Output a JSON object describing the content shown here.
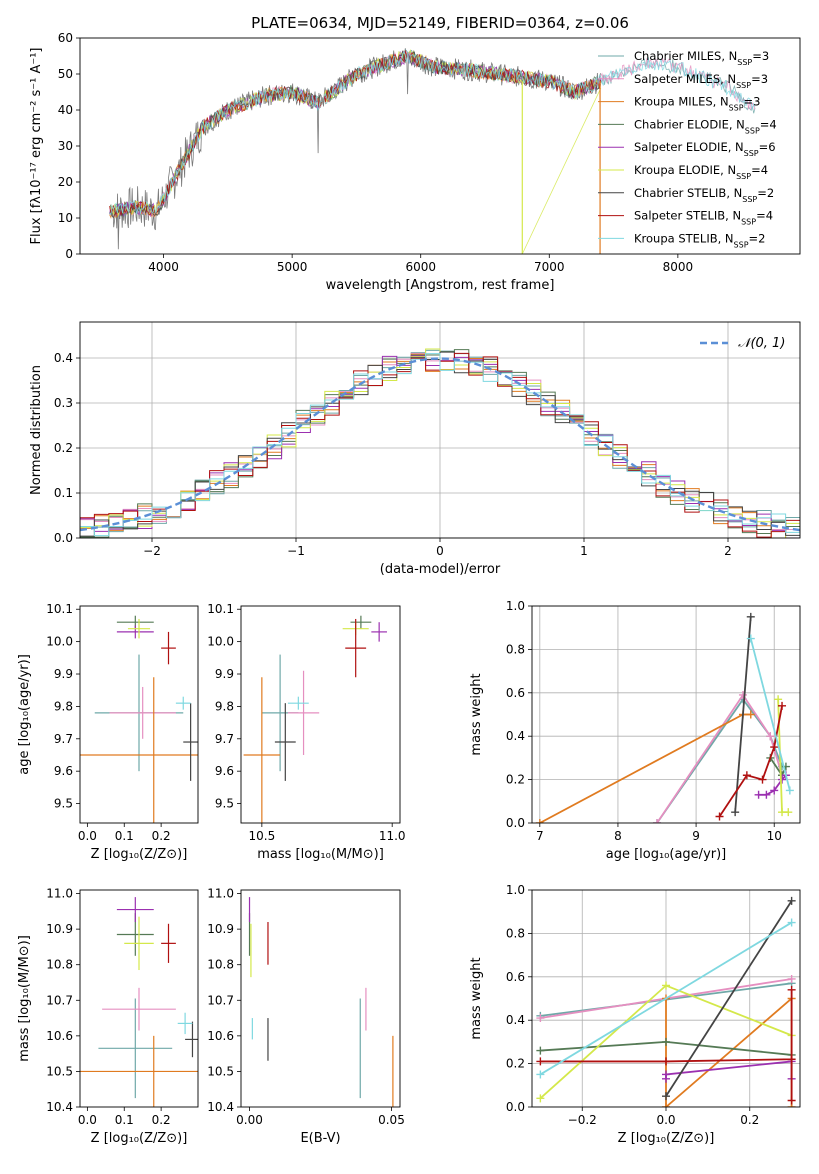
{
  "title": "PLATE=0634, MJD=52149, FIBERID=0364, z=0.06",
  "colors": {
    "grid": "#b0b0b0",
    "normal_curve": "#5b8fd6"
  },
  "chart_data": [
    {
      "id": "spectrum",
      "type": "line",
      "xlabel": "wavelength [Angstrom, rest frame]",
      "ylabel": "Flux [fλ10⁻¹⁷ erg cm⁻² s⁻¹ A⁻¹]",
      "xlim": [
        3350,
        8950
      ],
      "ylim": [
        0,
        60
      ],
      "xticks": [
        4000,
        5000,
        6000,
        7000,
        8000
      ],
      "yticks": [
        0,
        10,
        20,
        30,
        40,
        50,
        60
      ],
      "grid": false,
      "legend_position": "top-right",
      "anchor_points": {
        "x": [
          3600,
          3800,
          3950,
          4100,
          4300,
          4500,
          4800,
          5000,
          5200,
          5500,
          5800,
          5900,
          6100,
          6400,
          6600,
          6800,
          7000,
          7200,
          7400,
          7600,
          7800,
          8000,
          8200,
          8400,
          8600
        ],
        "y": [
          12,
          13,
          12,
          22,
          35,
          40,
          44,
          45,
          42,
          50,
          54,
          55,
          52,
          51,
          50,
          49,
          48,
          45,
          48,
          51,
          53,
          52,
          49,
          46,
          40
        ]
      },
      "series": [
        {
          "name": "Chabrier MILES",
          "nssp": "3",
          "color": "#6fa8a8"
        },
        {
          "name": "Salpeter MILES",
          "nssp": "3",
          "color": "#e58fc0"
        },
        {
          "name": "Kroupa MILES",
          "nssp": "3",
          "color": "#e07b20"
        },
        {
          "name": "Chabrier ELODIE",
          "nssp": "4",
          "color": "#557a55"
        },
        {
          "name": "Salpeter ELODIE",
          "nssp": "6",
          "color": "#9b30b0"
        },
        {
          "name": "Kroupa ELODIE",
          "nssp": "4",
          "color": "#d4e84a"
        },
        {
          "name": "Chabrier STELIB",
          "nssp": "2",
          "color": "#444444"
        },
        {
          "name": "Salpeter STELIB",
          "nssp": "4",
          "color": "#b01010"
        },
        {
          "name": "Kroupa STELIB",
          "nssp": "2",
          "color": "#7fd8e0"
        }
      ]
    },
    {
      "id": "residuals",
      "type": "bar",
      "xlabel": "(data-model)/error",
      "ylabel": "Normed distribution",
      "xlim": [
        -2.5,
        2.5
      ],
      "ylim": [
        0,
        0.48
      ],
      "xticks": [
        -2,
        -1,
        0,
        1,
        2
      ],
      "xticklabels": [
        "−2",
        "−1",
        "0",
        "1",
        "2"
      ],
      "yticks": [
        0.0,
        0.1,
        0.2,
        0.3,
        0.4
      ],
      "yticklabels": [
        "0.0",
        "0.1",
        "0.2",
        "0.3",
        "0.4"
      ],
      "grid": true,
      "legend_position": "top-right",
      "curve_label": "𝒩(0, 1)",
      "bin_width": 0.1
    },
    {
      "id": "age_vs_Z",
      "type": "scatter",
      "xlabel": "Z [log₁₀(Z/Z⊙)]",
      "ylabel": "age  [log₁₀(age/yr)]",
      "xlim": [
        -0.02,
        0.3
      ],
      "ylim": [
        9.44,
        10.11
      ],
      "xticks": [
        0.0,
        0.1,
        0.2
      ],
      "xticklabels": [
        "0.0",
        "0.1",
        "0.2"
      ],
      "yticks": [
        9.5,
        9.6,
        9.7,
        9.8,
        9.9,
        10.0,
        10.1
      ],
      "yticklabels": [
        "9.5",
        "9.6",
        "9.7",
        "9.8",
        "9.9",
        "10.0",
        "10.1"
      ],
      "grid": false,
      "points": [
        {
          "x": 0.14,
          "y": 9.78,
          "xerr": 0.12,
          "yerr": 0.18,
          "c": 0
        },
        {
          "x": 0.15,
          "y": 9.78,
          "xerr": 0.09,
          "yerr": 0.08,
          "c": 1
        },
        {
          "x": 0.18,
          "y": 9.65,
          "xerr": 0.22,
          "yerr": 0.24,
          "c": 2
        },
        {
          "x": 0.13,
          "y": 10.06,
          "xerr": 0.05,
          "yerr": 0.02,
          "c": 3
        },
        {
          "x": 0.13,
          "y": 10.03,
          "xerr": 0.05,
          "yerr": 0.02,
          "c": 4
        },
        {
          "x": 0.14,
          "y": 10.04,
          "xerr": 0.03,
          "yerr": 0.03,
          "c": 5
        },
        {
          "x": 0.28,
          "y": 9.69,
          "xerr": 0.02,
          "yerr": 0.12,
          "c": 6
        },
        {
          "x": 0.22,
          "y": 9.98,
          "xerr": 0.02,
          "yerr": 0.05,
          "c": 7
        },
        {
          "x": 0.26,
          "y": 9.81,
          "xerr": 0.02,
          "yerr": 0.02,
          "c": 8
        }
      ]
    },
    {
      "id": "age_vs_mass",
      "type": "scatter",
      "xlabel": "mass [log₁₀(M/M⊙)]",
      "ylabel": "",
      "xlim": [
        10.42,
        11.03
      ],
      "ylim": [
        9.44,
        10.11
      ],
      "xticks": [
        10.5,
        11.0
      ],
      "xticklabels": [
        "10.5",
        "11.0"
      ],
      "yticks": [
        9.5,
        9.6,
        9.7,
        9.8,
        9.9,
        10.0,
        10.1
      ],
      "yticklabels": [
        "9.5",
        "9.6",
        "9.7",
        "9.8",
        "9.9",
        "10.0",
        "10.1"
      ],
      "grid": false,
      "points": [
        {
          "x": 10.57,
          "y": 9.78,
          "xerr": 0.07,
          "yerr": 0.18,
          "c": 0
        },
        {
          "x": 10.66,
          "y": 9.78,
          "xerr": 0.06,
          "yerr": 0.13,
          "c": 1
        },
        {
          "x": 10.5,
          "y": 9.65,
          "xerr": 0.07,
          "yerr": 0.24,
          "c": 2
        },
        {
          "x": 10.88,
          "y": 10.06,
          "xerr": 0.04,
          "yerr": 0.02,
          "c": 3
        },
        {
          "x": 10.95,
          "y": 10.03,
          "xerr": 0.03,
          "yerr": 0.03,
          "c": 4
        },
        {
          "x": 10.86,
          "y": 10.04,
          "xerr": 0.05,
          "yerr": 0.02,
          "c": 5
        },
        {
          "x": 10.59,
          "y": 9.69,
          "xerr": 0.04,
          "yerr": 0.12,
          "c": 6
        },
        {
          "x": 10.86,
          "y": 9.98,
          "xerr": 0.04,
          "yerr": 0.09,
          "c": 7
        },
        {
          "x": 10.64,
          "y": 9.81,
          "xerr": 0.04,
          "yerr": 0.02,
          "c": 8
        }
      ]
    },
    {
      "id": "weight_vs_age",
      "type": "line",
      "xlabel": "age  [log₁₀(age/yr)]",
      "ylabel": "mass weight",
      "xlim": [
        6.9,
        10.33
      ],
      "ylim": [
        0,
        1
      ],
      "xticks": [
        7,
        8,
        9,
        10
      ],
      "xticklabels": [
        "7",
        "8",
        "9",
        "10"
      ],
      "yticks": [
        0.0,
        0.2,
        0.4,
        0.6,
        0.8,
        1.0
      ],
      "yticklabels": [
        "0.0",
        "0.2",
        "0.4",
        "0.6",
        "0.8",
        "1.0"
      ],
      "grid": true,
      "series": [
        {
          "c": 0,
          "x": [
            8.5,
            9.6,
            9.95,
            10.1
          ],
          "y": [
            0.0,
            0.57,
            0.4,
            0.26
          ]
        },
        {
          "c": 1,
          "x": [
            8.5,
            9.6,
            9.95,
            10.1
          ],
          "y": [
            0.0,
            0.59,
            0.4,
            0.22
          ]
        },
        {
          "c": 2,
          "x": [
            7.0,
            9.6,
            9.7
          ],
          "y": [
            0.0,
            0.5,
            0.5
          ]
        },
        {
          "c": 3,
          "x": [
            9.95,
            10.1,
            10.15
          ],
          "y": [
            0.3,
            0.22,
            0.26
          ]
        },
        {
          "c": 4,
          "x": [
            9.8,
            9.9,
            10.0,
            10.1,
            10.15
          ],
          "y": [
            0.13,
            0.13,
            0.15,
            0.2,
            0.22
          ]
        },
        {
          "c": 5,
          "x": [
            10.05,
            10.1,
            10.18
          ],
          "y": [
            0.57,
            0.05,
            0.05
          ]
        },
        {
          "c": 6,
          "x": [
            9.5,
            9.7
          ],
          "y": [
            0.05,
            0.95
          ]
        },
        {
          "c": 7,
          "x": [
            9.3,
            9.65,
            9.85,
            10.0,
            10.1
          ],
          "y": [
            0.03,
            0.22,
            0.2,
            0.35,
            0.54
          ]
        },
        {
          "c": 8,
          "x": [
            9.7,
            10.2
          ],
          "y": [
            0.85,
            0.15
          ]
        }
      ]
    },
    {
      "id": "mass_vs_Z",
      "type": "scatter",
      "xlabel": "Z [log₁₀(Z/Z⊙)]",
      "ylabel": "mass [log₁₀(M/M⊙)]",
      "xlim": [
        -0.02,
        0.3
      ],
      "ylim": [
        10.4,
        11.01
      ],
      "xticks": [
        0.0,
        0.1,
        0.2
      ],
      "xticklabels": [
        "0.0",
        "0.1",
        "0.2"
      ],
      "yticks": [
        10.4,
        10.5,
        10.6,
        10.7,
        10.8,
        10.9,
        11.0
      ],
      "yticklabels": [
        "10.4",
        "10.5",
        "10.6",
        "10.7",
        "10.8",
        "10.9",
        "11.0"
      ],
      "grid": false,
      "points": [
        {
          "x": 0.13,
          "y": 10.565,
          "xerr": 0.1,
          "yerr": 0.14,
          "c": 0
        },
        {
          "x": 0.14,
          "y": 10.675,
          "xerr": 0.1,
          "yerr": 0.06,
          "c": 1
        },
        {
          "x": 0.18,
          "y": 10.5,
          "xerr": 0.2,
          "yerr": 0.1,
          "c": 2
        },
        {
          "x": 0.13,
          "y": 10.885,
          "xerr": 0.05,
          "yerr": 0.06,
          "c": 3
        },
        {
          "x": 0.13,
          "y": 10.955,
          "xerr": 0.05,
          "yerr": 0.035,
          "c": 4
        },
        {
          "x": 0.14,
          "y": 10.86,
          "xerr": 0.04,
          "yerr": 0.075,
          "c": 5
        },
        {
          "x": 0.285,
          "y": 10.59,
          "xerr": 0.02,
          "yerr": 0.05,
          "c": 6
        },
        {
          "x": 0.22,
          "y": 10.86,
          "xerr": 0.02,
          "yerr": 0.055,
          "c": 7
        },
        {
          "x": 0.265,
          "y": 10.635,
          "xerr": 0.02,
          "yerr": 0.03,
          "c": 8
        }
      ]
    },
    {
      "id": "mass_vs_ebv",
      "type": "scatter",
      "xlabel": "E(B-V)",
      "ylabel": "",
      "xlim": [
        -0.003,
        0.053
      ],
      "ylim": [
        10.4,
        11.01
      ],
      "xticks": [
        0.0,
        0.05
      ],
      "xticklabels": [
        "0.00",
        "0.05"
      ],
      "yticks": [
        10.4,
        10.5,
        10.6,
        10.7,
        10.8,
        10.9,
        11.0
      ],
      "yticklabels": [
        "10.4",
        "10.5",
        "10.6",
        "10.7",
        "10.8",
        "10.9",
        "11.0"
      ],
      "grid": false,
      "points": [
        {
          "x": 0.039,
          "y": 10.565,
          "xerr": 0,
          "yerr": 0.14,
          "c": 0
        },
        {
          "x": 0.041,
          "y": 10.675,
          "xerr": 0,
          "yerr": 0.06,
          "c": 1
        },
        {
          "x": 0.0505,
          "y": 10.5,
          "xerr": 0,
          "yerr": 0.1,
          "c": 2
        },
        {
          "x": 0.0,
          "y": 10.885,
          "xerr": 0,
          "yerr": 0.06,
          "c": 3
        },
        {
          "x": 0.0,
          "y": 10.955,
          "xerr": 0,
          "yerr": 0.035,
          "c": 4
        },
        {
          "x": 0.0005,
          "y": 10.84,
          "xerr": 0,
          "yerr": 0.075,
          "c": 5
        },
        {
          "x": 0.0065,
          "y": 10.59,
          "xerr": 0,
          "yerr": 0.06,
          "c": 6
        },
        {
          "x": 0.0065,
          "y": 10.86,
          "xerr": 0,
          "yerr": 0.06,
          "c": 7
        },
        {
          "x": 0.001,
          "y": 10.62,
          "xerr": 0,
          "yerr": 0.03,
          "c": 8
        }
      ]
    },
    {
      "id": "weight_vs_Z",
      "type": "line",
      "xlabel": "Z [log₁₀(Z/Z⊙)]",
      "ylabel": "mass weight",
      "xlim": [
        -0.32,
        0.32
      ],
      "ylim": [
        0,
        1
      ],
      "xticks": [
        -0.2,
        0.0,
        0.2
      ],
      "xticklabels": [
        "−0.2",
        "0.0",
        "0.2"
      ],
      "yticks": [
        0.0,
        0.2,
        0.4,
        0.6,
        0.8,
        1.0
      ],
      "yticklabels": [
        "0.0",
        "0.2",
        "0.4",
        "0.6",
        "0.8",
        "1.0"
      ],
      "grid": true,
      "series": [
        {
          "c": 0,
          "x": [
            -0.3,
            0.3
          ],
          "y": [
            0.42,
            0.57
          ]
        },
        {
          "c": 1,
          "x": [
            -0.3,
            0.3
          ],
          "y": [
            0.41,
            0.59
          ]
        },
        {
          "c": 2,
          "x": [
            0.0,
            0.0,
            0.3,
            0.3
          ],
          "y": [
            0.5,
            0.0,
            0.5,
            0.0
          ]
        },
        {
          "c": 3,
          "x": [
            -0.3,
            0.0,
            0.3
          ],
          "y": [
            0.26,
            0.3,
            0.24
          ]
        },
        {
          "c": 4,
          "x": [
            0.0,
            0.0,
            0.3,
            0.3
          ],
          "y": [
            0.13,
            0.15,
            0.21,
            0.13
          ]
        },
        {
          "c": 5,
          "x": [
            -0.3,
            0.0,
            0.3
          ],
          "y": [
            0.04,
            0.56,
            0.33
          ]
        },
        {
          "c": 6,
          "x": [
            0.0,
            0.3
          ],
          "y": [
            0.05,
            0.95
          ]
        },
        {
          "c": 7,
          "x": [
            -0.3,
            0.0,
            0.3,
            0.3,
            0.3
          ],
          "y": [
            0.21,
            0.21,
            0.22,
            0.54,
            0.03
          ]
        },
        {
          "c": 8,
          "x": [
            -0.3,
            0.3
          ],
          "y": [
            0.15,
            0.85
          ]
        }
      ]
    }
  ]
}
